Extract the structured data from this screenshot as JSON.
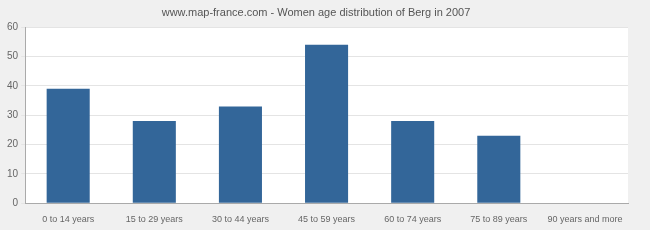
{
  "chart_data": {
    "type": "bar",
    "title": "www.map-france.com - Women age distribution of Berg in 2007",
    "categories": [
      "0 to 14 years",
      "15 to 29 years",
      "30 to 44 years",
      "45 to 59 years",
      "60 to 74 years",
      "75 to 89 years",
      "90 years and more"
    ],
    "values": [
      39,
      28,
      33,
      54,
      28,
      23,
      0
    ],
    "color": "#336699",
    "ylim": [
      0,
      60
    ],
    "yticks": [
      0,
      10,
      20,
      30,
      40,
      50,
      60
    ],
    "grid": true
  }
}
